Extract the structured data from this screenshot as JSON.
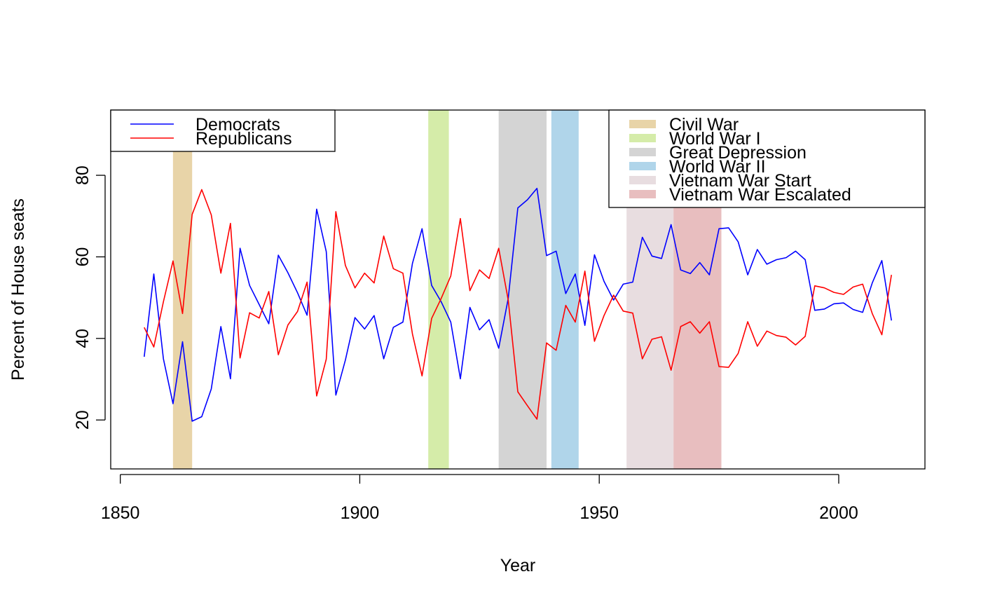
{
  "chart_data": {
    "type": "line",
    "title": "",
    "xlabel": "Year",
    "ylabel": "Percent of House seats",
    "xlim": [
      1848,
      2018
    ],
    "ylim": [
      8,
      96
    ],
    "xticks": [
      1850,
      1900,
      1950,
      2000
    ],
    "yticks": [
      20,
      40,
      60,
      80
    ],
    "x": [
      1855,
      1857,
      1859,
      1861,
      1863,
      1865,
      1867,
      1869,
      1871,
      1873,
      1875,
      1877,
      1879,
      1881,
      1883,
      1885,
      1887,
      1889,
      1891,
      1893,
      1895,
      1897,
      1899,
      1901,
      1903,
      1905,
      1907,
      1909,
      1911,
      1913,
      1915,
      1917,
      1919,
      1921,
      1923,
      1925,
      1927,
      1929,
      1931,
      1933,
      1935,
      1937,
      1939,
      1941,
      1943,
      1945,
      1947,
      1949,
      1951,
      1953,
      1955,
      1957,
      1959,
      1961,
      1963,
      1965,
      1967,
      1969,
      1971,
      1973,
      1975,
      1977,
      1979,
      1981,
      1983,
      1985,
      1987,
      1989,
      1991,
      1993,
      1995,
      1997,
      1999,
      2001,
      2003,
      2005,
      2007,
      2009,
      2011
    ],
    "series": [
      {
        "name": "Democrats",
        "color": "#0000FF",
        "values": [
          35.5,
          55.8,
          35.0,
          24.0,
          39.2,
          19.7,
          20.8,
          27.6,
          42.9,
          30.1,
          62.1,
          53.0,
          48.3,
          43.6,
          60.4,
          56.1,
          51.2,
          45.7,
          71.7,
          61.3,
          26.1,
          34.7,
          45.1,
          42.3,
          45.6,
          35.0,
          42.7,
          44.0,
          58.4,
          66.9,
          53.0,
          49.0,
          44.0,
          30.1,
          47.6,
          42.1,
          44.6,
          37.6,
          49.8,
          72.0,
          74.0,
          76.8,
          60.3,
          61.4,
          51.0,
          55.8,
          43.2,
          60.5,
          54.0,
          49.4,
          53.3,
          53.8,
          64.8,
          60.2,
          59.6,
          67.9,
          56.8,
          55.9,
          58.6,
          55.6,
          66.9,
          67.1,
          63.7,
          55.6,
          61.8,
          58.2,
          59.3,
          59.8,
          61.4,
          59.3,
          46.9,
          47.2,
          48.5,
          48.7,
          47.1,
          46.4,
          53.6,
          59.1,
          44.4
        ]
      },
      {
        "name": "Republicans",
        "color": "#FF0000",
        "values": [
          42.7,
          37.9,
          49.0,
          59.0,
          46.1,
          70.4,
          76.5,
          70.3,
          56.0,
          68.2,
          35.2,
          46.3,
          45.0,
          51.5,
          36.0,
          43.3,
          46.6,
          53.8,
          25.9,
          34.9,
          71.1,
          57.9,
          52.4,
          56.0,
          53.6,
          65.1,
          57.1,
          56.0,
          41.1,
          30.8,
          44.9,
          49.8,
          55.3,
          69.4,
          51.7,
          56.8,
          54.7,
          62.1,
          49.4,
          26.9,
          23.5,
          20.2,
          38.9,
          37.1,
          48.1,
          44.0,
          56.5,
          39.3,
          45.6,
          50.6,
          46.7,
          46.2,
          35.0,
          39.8,
          40.4,
          32.2,
          42.9,
          44.1,
          41.3,
          44.1,
          33.1,
          32.9,
          36.3,
          44.1,
          38.1,
          41.8,
          40.7,
          40.3,
          38.4,
          40.5,
          52.9,
          52.4,
          51.3,
          50.8,
          52.6,
          53.3,
          46.1,
          40.9,
          55.6
        ]
      }
    ],
    "periods": [
      {
        "name": "Civil War",
        "start": 1861,
        "end": 1865,
        "color": "#E8D4A8"
      },
      {
        "name": "World War I",
        "start": 1914.3,
        "end": 1918.6,
        "color": "#D5ECA9"
      },
      {
        "name": "Great Depression",
        "start": 1929,
        "end": 1939,
        "color": "#D4D4D4"
      },
      {
        "name": "World War II",
        "start": 1940,
        "end": 1945.7,
        "color": "#B0D5EA"
      },
      {
        "name": "Vietnam War Start",
        "start": 1955.7,
        "end": 1965.5,
        "color": "#E8DDE0"
      },
      {
        "name": "Vietnam War Escalated",
        "start": 1965.5,
        "end": 1975.5,
        "color": "#E8BEBF"
      }
    ],
    "legend_parties_position": "top-left",
    "legend_periods_position": "top-right",
    "grid": false
  }
}
